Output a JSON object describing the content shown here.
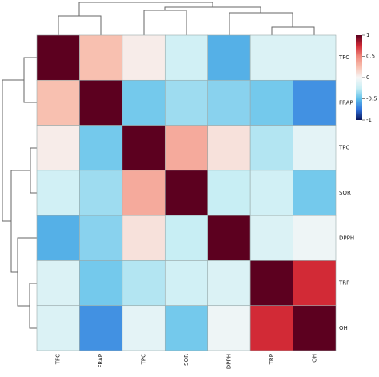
{
  "chart_data": {
    "type": "heatmap",
    "x_categories": [
      "TFC",
      "FRAP",
      "TPC",
      "SOR",
      "DPPH",
      "TRP",
      "OH"
    ],
    "y_categories": [
      "TFC",
      "FRAP",
      "TPC",
      "SOR",
      "DPPH",
      "TRP",
      "OH"
    ],
    "values": [
      [
        1,
        0.25,
        0.05,
        -0.2,
        -0.55,
        -0.15,
        -0.15
      ],
      [
        0.25,
        1,
        -0.45,
        -0.35,
        -0.4,
        -0.45,
        -0.65
      ],
      [
        0.05,
        -0.45,
        1,
        0.35,
        0.1,
        -0.3,
        -0.1
      ],
      [
        -0.2,
        -0.35,
        0.35,
        1,
        -0.25,
        -0.2,
        -0.45
      ],
      [
        -0.55,
        -0.4,
        0.1,
        -0.25,
        1,
        -0.15,
        -0.05
      ],
      [
        -0.15,
        -0.45,
        -0.3,
        -0.2,
        -0.15,
        1,
        0.75
      ],
      [
        -0.15,
        -0.65,
        -0.1,
        -0.45,
        -0.05,
        0.75,
        1
      ]
    ],
    "colormap": [
      "#08145a",
      "#2f72dc",
      "#5fc0ea",
      "#c8eef4",
      "#f7f7f7",
      "#f8c0b0",
      "#f08a7e",
      "#d22a36",
      "#5c001f"
    ],
    "clim": [
      -1,
      1
    ],
    "colorbar_ticks": [
      1,
      0.5,
      0,
      -0.5,
      -1
    ]
  }
}
